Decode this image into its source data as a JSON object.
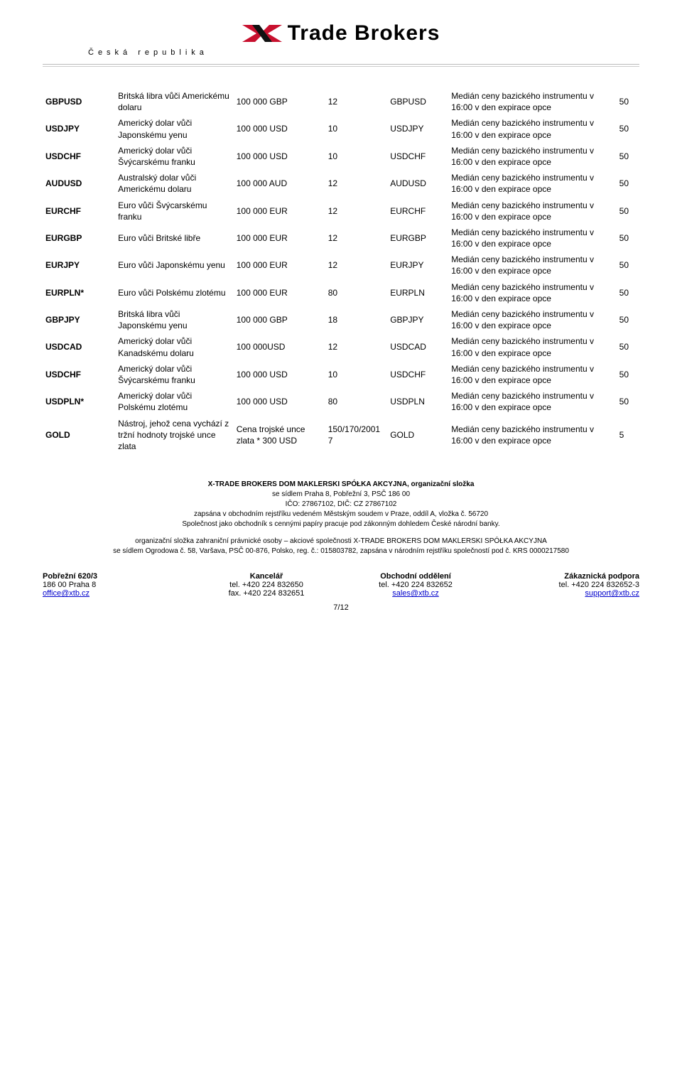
{
  "header": {
    "brand": "Trade Brokers",
    "sub": "Česká republika",
    "logo_colors": {
      "red": "#c8102e",
      "black": "#111111"
    }
  },
  "median_text": "Medián ceny bazického instrumentu v 16:00 v den expirace opce",
  "rows": [
    {
      "symbol": "GBPUSD",
      "desc": "Britská libra vůči Americkému dolaru",
      "vol": "100 000 GBP",
      "n": "12",
      "sym2": "GBPUSD",
      "last": "50"
    },
    {
      "symbol": "USDJPY",
      "desc": "Americký dolar vůči Japonskému yenu",
      "vol": "100 000 USD",
      "n": "10",
      "sym2": "USDJPY",
      "last": "50"
    },
    {
      "symbol": "USDCHF",
      "desc": "Americký dolar vůči Švýcarskému franku",
      "vol": "100 000 USD",
      "n": "10",
      "sym2": "USDCHF",
      "last": "50"
    },
    {
      "symbol": "AUDUSD",
      "desc": "Australský dolar vůči Americkému dolaru",
      "vol": "100 000 AUD",
      "n": "12",
      "sym2": "AUDUSD",
      "last": "50"
    },
    {
      "symbol": "EURCHF",
      "desc": "Euro vůči Švýcarskému franku",
      "vol": "100 000 EUR",
      "n": "12",
      "sym2": "EURCHF",
      "last": "50"
    },
    {
      "symbol": "EURGBP",
      "desc": "Euro vůči Britské libře",
      "vol": "100 000 EUR",
      "n": "12",
      "sym2": "EURGBP",
      "last": "50"
    },
    {
      "symbol": "EURJPY",
      "desc": "Euro vůči Japonskému yenu",
      "vol": "100 000 EUR",
      "n": "12",
      "sym2": "EURJPY",
      "last": "50"
    },
    {
      "symbol": "EURPLN*",
      "desc": "Euro vůči Polskému zlotému",
      "vol": "100 000 EUR",
      "n": "80",
      "sym2": "EURPLN",
      "last": "50"
    },
    {
      "symbol": "GBPJPY",
      "desc": "Britská libra vůči Japonskému yenu",
      "vol": "100 000 GBP",
      "n": "18",
      "sym2": "GBPJPY",
      "last": "50"
    },
    {
      "symbol": "USDCAD",
      "desc": "Americký dolar vůči Kanadskému dolaru",
      "vol": "100 000USD",
      "n": "12",
      "sym2": "USDCAD",
      "last": "50"
    },
    {
      "symbol": "USDCHF",
      "desc": "Americký dolar vůči Švýcarskému franku",
      "vol": "100 000 USD",
      "n": "10",
      "sym2": "USDCHF",
      "last": "50"
    },
    {
      "symbol": "USDPLN*",
      "desc": "Americký dolar vůči Polskému zlotému",
      "vol": "100 000 USD",
      "n": "80",
      "sym2": "USDPLN",
      "last": "50"
    },
    {
      "symbol": "GOLD",
      "desc": "Nástroj, jehož cena vychází z tržní hodnoty trojské unce zlata",
      "vol": "Cena trojské unce zlata * 300 USD",
      "n": "150/170/2001 7",
      "sym2": "GOLD",
      "last": "5"
    }
  ],
  "footer": {
    "line1": "X-TRADE BROKERS DOM MAKLERSKI SPÓŁKA AKCYJNA, organizační složka",
    "line2": "se sídlem Praha 8, Pobřežní 3, PSČ 186 00",
    "line3": "IČO: 27867102, DIČ: CZ 27867102",
    "line4": "zapsána v obchodním rejstříku vedeném Městským soudem v Praze, oddíl A, vložka č. 56720",
    "line5": "Společnost jako obchodník s cennými papíry pracuje pod zákonným dohledem České národní banky.",
    "line6": "organizační složka zahraniční právnické osoby – akciové společnosti X-TRADE BROKERS DOM MAKLERSKI SPÓŁKA AKCYJNA",
    "line7": "se sídlem Ogrodowa č. 58, Varšava, PSČ 00-876, Polsko, reg. č.: 015803782, zapsána v národním rejstříku společností pod č. KRS 0000217580"
  },
  "contacts": {
    "addr": {
      "title": "Pobřežní 620/3",
      "l2": "186 00 Praha 8",
      "email": "office@xtb.cz"
    },
    "office": {
      "title": "Kancelář",
      "tel": "tel. +420 224 832650",
      "fax": "fax. +420 224 832651"
    },
    "sales": {
      "title": "Obchodní oddělení",
      "tel": "tel. +420 224 832652",
      "email": "sales@xtb.cz"
    },
    "support": {
      "title": "Zákaznická podpora",
      "tel": "tel. +420 224 832652-3",
      "email": "support@xtb.cz"
    }
  },
  "page": "7/12"
}
